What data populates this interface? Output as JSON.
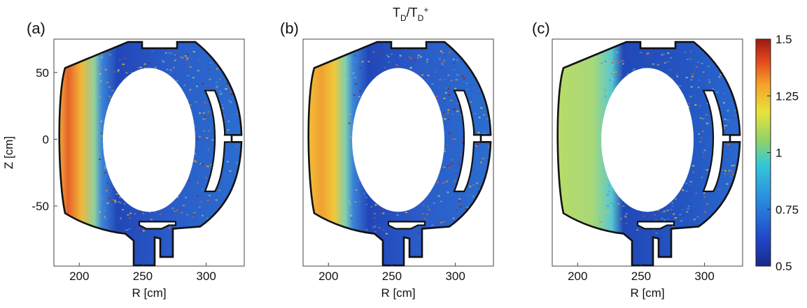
{
  "chart_data": {
    "type": "heatmap",
    "title_main": "T",
    "title_sub1": "D",
    "title_sep": "/T",
    "title_sub2": "D",
    "title_sup": "+",
    "colorbar": {
      "range": [
        0.5,
        1.5
      ],
      "ticks": [
        "1.5",
        "1.25",
        "1",
        "0.75",
        "0.5"
      ],
      "colormap": "jet"
    },
    "panels": [
      {
        "label": "(a)",
        "xlabel": "R [cm]",
        "ylabel": "Z [cm]",
        "xticks": [
          "200",
          "250",
          "300"
        ],
        "yticks": [
          "50",
          "0",
          "-50"
        ],
        "xlim": [
          180,
          330
        ],
        "ylim": [
          -95,
          75
        ]
      },
      {
        "label": "(b)",
        "xlabel": "R [cm]",
        "ylabel": "",
        "xticks": [
          "200",
          "250",
          "300"
        ],
        "yticks": [],
        "xlim": [
          180,
          330
        ],
        "ylim": [
          -95,
          75
        ]
      },
      {
        "label": "(c)",
        "xlabel": "R [cm]",
        "ylabel": "",
        "xticks": [
          "200",
          "250",
          "300"
        ],
        "yticks": [],
        "xlim": [
          180,
          330
        ],
        "ylim": [
          -95,
          75
        ]
      }
    ]
  }
}
